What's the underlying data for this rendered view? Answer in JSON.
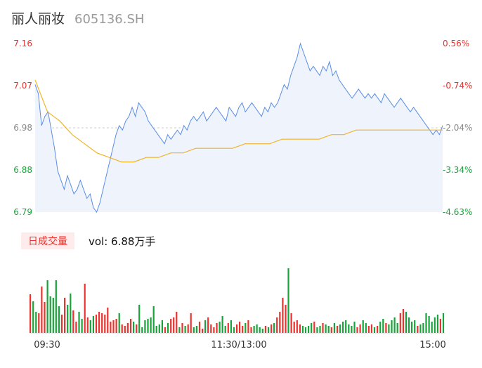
{
  "header": {
    "name": "丽人丽妆",
    "code": "605136.SH"
  },
  "volume_panel": {
    "tab_label": "日成交量",
    "vol_label": "vol: 6.88万手"
  },
  "colors": {
    "price_line": "#5b8ee6",
    "avg_line": "#f0b429",
    "up": "#e8332e",
    "down": "#1aa33b",
    "area": "#eef3fc"
  },
  "chart_data": [
    {
      "type": "line",
      "title": "",
      "y_left_ticks": [
        "7.16",
        "7.07",
        "6.98",
        "6.88",
        "6.79"
      ],
      "y_right_ticks": [
        "0.56%",
        "-0.74%",
        "-2.04%",
        "-3.34%",
        "-4.63%"
      ],
      "x_ticks": [
        "09:30",
        "11:30/13:00",
        "15:00"
      ],
      "ylim": [
        6.79,
        7.16
      ],
      "series": [
        {
          "values": [
            7.07,
            7.05,
            6.98,
            7.0,
            7.01,
            6.97,
            6.93,
            6.88,
            6.86,
            6.84,
            6.87,
            6.85,
            6.83,
            6.84,
            6.86,
            6.84,
            6.82,
            6.83,
            6.8,
            6.79,
            6.81,
            6.84,
            6.87,
            6.9,
            6.93,
            6.96,
            6.98,
            6.97,
            6.99,
            7.0,
            7.02,
            7.0,
            7.03,
            7.02,
            7.01,
            6.99,
            6.98,
            6.97,
            6.96,
            6.95,
            6.94,
            6.96,
            6.95,
            6.96,
            6.97,
            6.96,
            6.98,
            6.97,
            6.99,
            7.0,
            6.99,
            7.0,
            7.01,
            6.99,
            7.0,
            7.01,
            7.02,
            7.01,
            7.0,
            6.99,
            7.02,
            7.01,
            7.0,
            7.02,
            7.03,
            7.01,
            7.02,
            7.03,
            7.02,
            7.01,
            7.0,
            7.02,
            7.01,
            7.03,
            7.02,
            7.03,
            7.05,
            7.07,
            7.06,
            7.09,
            7.11,
            7.13,
            7.16,
            7.14,
            7.12,
            7.1,
            7.11,
            7.1,
            7.09,
            7.11,
            7.1,
            7.12,
            7.09,
            7.1,
            7.08,
            7.07,
            7.06,
            7.05,
            7.04,
            7.05,
            7.06,
            7.05,
            7.04,
            7.05,
            7.04,
            7.05,
            7.04,
            7.03,
            7.05,
            7.04,
            7.03,
            7.02,
            7.03,
            7.04,
            7.03,
            7.02,
            7.01,
            7.02,
            7.01,
            7.0,
            6.99,
            6.98,
            6.97,
            6.96,
            6.97,
            6.96,
            6.98
          ],
          "color": "#5b8ee6"
        },
        {
          "values": [
            7.08,
            7.01,
            6.99,
            6.96,
            6.94,
            6.92,
            6.91,
            6.9,
            6.9,
            6.91,
            6.91,
            6.92,
            6.92,
            6.93,
            6.93,
            6.93,
            6.93,
            6.94,
            6.94,
            6.94,
            6.95,
            6.95,
            6.95,
            6.95,
            6.96,
            6.96,
            6.97,
            6.97,
            6.97,
            6.97,
            6.97,
            6.97,
            6.97,
            6.97
          ],
          "color": "#f0b429"
        }
      ]
    },
    {
      "type": "bar",
      "title": "",
      "series": [
        {
          "name": "volume",
          "values": [
            55,
            45,
            30,
            28,
            66,
            44,
            75,
            52,
            50,
            75,
            38,
            26,
            50,
            40,
            56,
            32,
            16,
            30,
            20,
            70,
            22,
            18,
            24,
            26,
            30,
            28,
            26,
            36,
            16,
            18,
            20,
            28,
            12,
            10,
            14,
            20,
            16,
            12,
            40,
            8,
            18,
            20,
            22,
            38,
            10,
            12,
            18,
            8,
            14,
            20,
            22,
            30,
            8,
            14,
            10,
            12,
            28,
            8,
            10,
            16,
            6,
            18,
            22,
            12,
            8,
            14,
            16,
            24,
            10,
            14,
            18,
            8,
            12,
            16,
            10,
            14,
            18,
            8,
            10,
            12,
            8,
            6,
            10,
            8,
            12,
            14,
            22,
            30,
            50,
            40,
            92,
            28,
            16,
            18,
            12,
            10,
            8,
            10,
            14,
            16,
            8,
            10,
            14,
            12,
            10,
            8,
            14,
            10,
            12,
            16,
            18,
            12,
            10,
            16,
            8,
            12,
            18,
            14,
            10,
            12,
            8,
            10,
            16,
            20,
            14,
            12,
            18,
            22,
            14,
            28,
            34,
            30,
            22,
            16,
            18,
            10,
            12,
            14,
            28,
            24,
            16,
            22,
            26,
            20,
            28
          ]
        }
      ]
    }
  ]
}
